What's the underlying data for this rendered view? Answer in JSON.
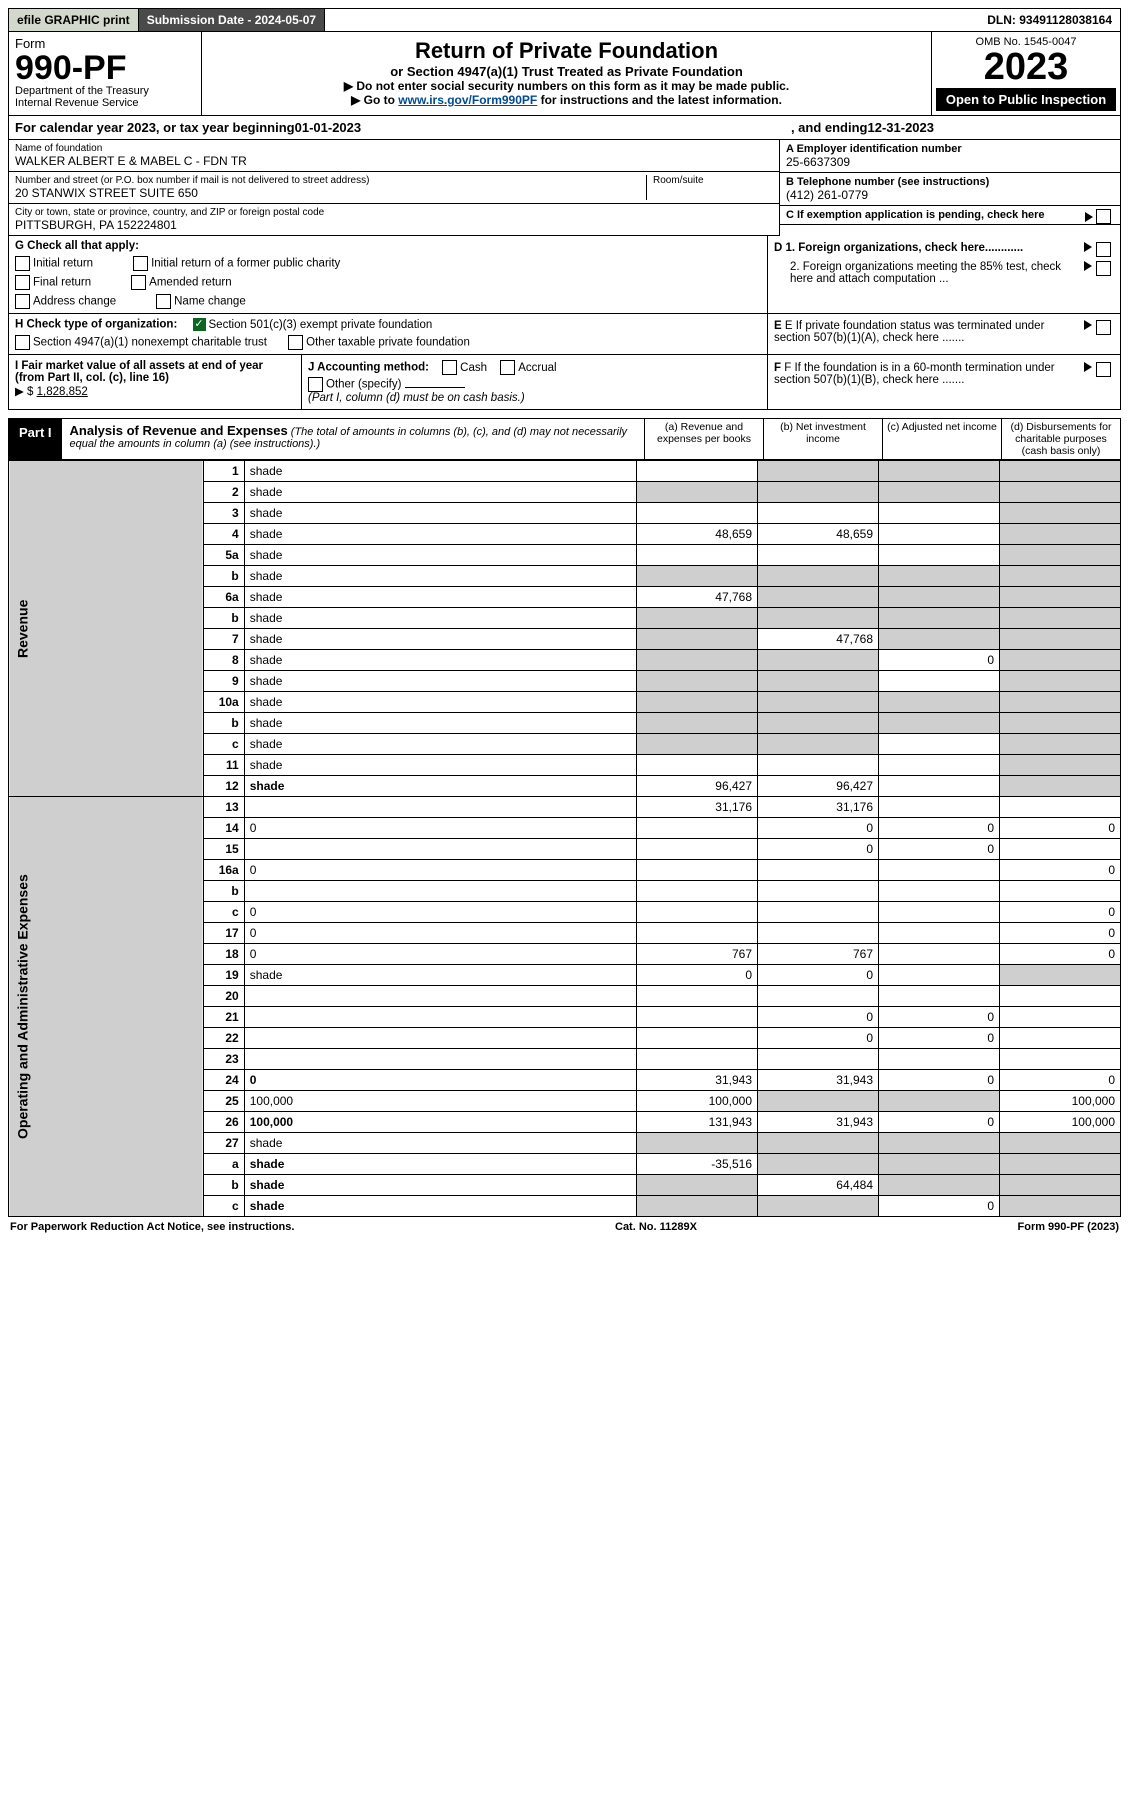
{
  "topbar": {
    "efile": "efile GRAPHIC print",
    "submission": "Submission Date - 2024-05-07",
    "dln": "DLN: 93491128038164"
  },
  "header": {
    "form_word": "Form",
    "form_number": "990-PF",
    "dept": "Department of the Treasury",
    "irs": "Internal Revenue Service",
    "title": "Return of Private Foundation",
    "subtitle": "or Section 4947(a)(1) Trust Treated as Private Foundation",
    "instr1": "▶ Do not enter social security numbers on this form as it may be made public.",
    "instr2_pre": "▶ Go to ",
    "instr2_link": "www.irs.gov/Form990PF",
    "instr2_post": " for instructions and the latest information.",
    "omb": "OMB No. 1545-0047",
    "year": "2023",
    "open": "Open to Public Inspection"
  },
  "calyear": {
    "pre": "For calendar year 2023, or tax year beginning ",
    "begin": "01-01-2023",
    "mid": ", and ending ",
    "end": "12-31-2023"
  },
  "info": {
    "name_label": "Name of foundation",
    "name": "WALKER ALBERT E & MABEL C - FDN TR",
    "addr_label": "Number and street (or P.O. box number if mail is not delivered to street address)",
    "addr": "20 STANWIX STREET SUITE 650",
    "room_label": "Room/suite",
    "city_label": "City or town, state or province, country, and ZIP or foreign postal code",
    "city": "PITTSBURGH, PA  152224801",
    "a_label": "A Employer identification number",
    "a_val": "25-6637309",
    "b_label": "B Telephone number (see instructions)",
    "b_val": "(412) 261-0779",
    "c_label": "C If exemption application is pending, check here",
    "d1": "D 1. Foreign organizations, check here............",
    "d2": "2. Foreign organizations meeting the 85% test, check here and attach computation ...",
    "e": "E  If private foundation status was terminated under section 507(b)(1)(A), check here .......",
    "f": "F  If the foundation is in a 60-month termination under section 507(b)(1)(B), check here ......."
  },
  "g": {
    "label": "G Check all that apply:",
    "o1": "Initial return",
    "o2": "Initial return of a former public charity",
    "o3": "Final return",
    "o4": "Amended return",
    "o5": "Address change",
    "o6": "Name change"
  },
  "h": {
    "label": "H Check type of organization:",
    "o1": "Section 501(c)(3) exempt private foundation",
    "o2": "Section 4947(a)(1) nonexempt charitable trust",
    "o3": "Other taxable private foundation"
  },
  "i": {
    "label": "I Fair market value of all assets at end of year (from Part II, col. (c), line 16)",
    "val_prefix": "▶ $",
    "val": "1,828,852"
  },
  "j": {
    "label": "J Accounting method:",
    "o1": "Cash",
    "o2": "Accrual",
    "o3": "Other (specify)",
    "note": "(Part I, column (d) must be on cash basis.)"
  },
  "part1": {
    "label": "Part I",
    "title": "Analysis of Revenue and Expenses",
    "note": "(The total of amounts in columns (b), (c), and (d) may not necessarily equal the amounts in column (a) (see instructions).)",
    "col_a": "(a)   Revenue and expenses per books",
    "col_b": "(b)   Net investment income",
    "col_c": "(c)   Adjusted net income",
    "col_d": "(d)   Disbursements for charitable purposes (cash basis only)"
  },
  "side": {
    "revenue": "Revenue",
    "expenses": "Operating and Administrative Expenses"
  },
  "rows": [
    {
      "n": "1",
      "d": "shade",
      "a": "",
      "b": "shade",
      "c": "shade"
    },
    {
      "n": "2",
      "d": "shade",
      "a": "shade",
      "b": "shade",
      "c": "shade"
    },
    {
      "n": "3",
      "d": "shade",
      "a": "",
      "b": "",
      "c": ""
    },
    {
      "n": "4",
      "d": "shade",
      "a": "48,659",
      "b": "48,659",
      "c": ""
    },
    {
      "n": "5a",
      "d": "shade",
      "a": "",
      "b": "",
      "c": ""
    },
    {
      "n": "b",
      "d": "shade",
      "a": "shade",
      "b": "shade",
      "c": "shade"
    },
    {
      "n": "6a",
      "d": "shade",
      "a": "47,768",
      "b": "shade",
      "c": "shade"
    },
    {
      "n": "b",
      "d": "shade",
      "a": "shade",
      "b": "shade",
      "c": "shade"
    },
    {
      "n": "7",
      "d": "shade",
      "a": "shade",
      "b": "47,768",
      "c": "shade"
    },
    {
      "n": "8",
      "d": "shade",
      "a": "shade",
      "b": "shade",
      "c": "0"
    },
    {
      "n": "9",
      "d": "shade",
      "a": "shade",
      "b": "shade",
      "c": ""
    },
    {
      "n": "10a",
      "d": "shade",
      "a": "shade",
      "b": "shade",
      "c": "shade"
    },
    {
      "n": "b",
      "d": "shade",
      "a": "shade",
      "b": "shade",
      "c": "shade"
    },
    {
      "n": "c",
      "d": "shade",
      "a": "shade",
      "b": "shade",
      "c": ""
    },
    {
      "n": "11",
      "d": "shade",
      "a": "",
      "b": "",
      "c": ""
    },
    {
      "n": "12",
      "d": "shade",
      "a": "96,427",
      "b": "96,427",
      "c": "",
      "bold": true
    },
    {
      "n": "13",
      "d": "",
      "a": "31,176",
      "b": "31,176",
      "c": ""
    },
    {
      "n": "14",
      "d": "0",
      "a": "",
      "b": "0",
      "c": "0"
    },
    {
      "n": "15",
      "d": "",
      "a": "",
      "b": "0",
      "c": "0"
    },
    {
      "n": "16a",
      "d": "0",
      "a": "",
      "b": "",
      "c": ""
    },
    {
      "n": "b",
      "d": "",
      "a": "",
      "b": "",
      "c": ""
    },
    {
      "n": "c",
      "d": "0",
      "a": "",
      "b": "",
      "c": ""
    },
    {
      "n": "17",
      "d": "0",
      "a": "",
      "b": "",
      "c": ""
    },
    {
      "n": "18",
      "d": "0",
      "a": "767",
      "b": "767",
      "c": ""
    },
    {
      "n": "19",
      "d": "shade",
      "a": "0",
      "b": "0",
      "c": ""
    },
    {
      "n": "20",
      "d": "",
      "a": "",
      "b": "",
      "c": ""
    },
    {
      "n": "21",
      "d": "",
      "a": "",
      "b": "0",
      "c": "0"
    },
    {
      "n": "22",
      "d": "",
      "a": "",
      "b": "0",
      "c": "0"
    },
    {
      "n": "23",
      "d": "",
      "a": "",
      "b": "",
      "c": ""
    },
    {
      "n": "24",
      "d": "0",
      "a": "31,943",
      "b": "31,943",
      "c": "0",
      "bold": true
    },
    {
      "n": "25",
      "d": "100,000",
      "a": "100,000",
      "b": "shade",
      "c": "shade"
    },
    {
      "n": "26",
      "d": "100,000",
      "a": "131,943",
      "b": "31,943",
      "c": "0",
      "bold": true
    },
    {
      "n": "27",
      "d": "shade",
      "a": "shade",
      "b": "shade",
      "c": "shade"
    },
    {
      "n": "a",
      "d": "shade",
      "a": "-35,516",
      "b": "shade",
      "c": "shade",
      "bold": true
    },
    {
      "n": "b",
      "d": "shade",
      "a": "shade",
      "b": "64,484",
      "c": "shade",
      "bold": true
    },
    {
      "n": "c",
      "d": "shade",
      "a": "shade",
      "b": "shade",
      "c": "0",
      "bold": true
    }
  ],
  "footer": {
    "left": "For Paperwork Reduction Act Notice, see instructions.",
    "mid": "Cat. No. 11289X",
    "right": "Form 990-PF (2023)"
  }
}
